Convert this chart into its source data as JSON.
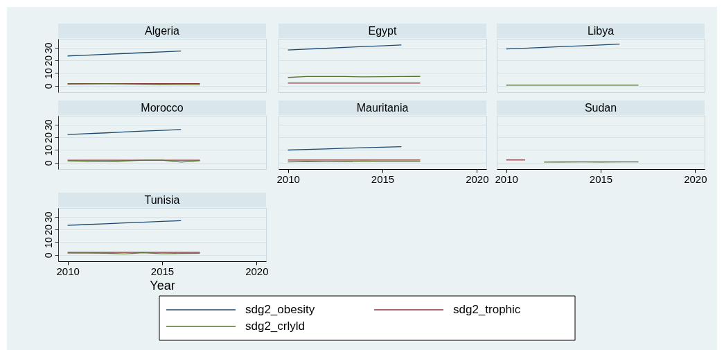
{
  "chart_data": [
    {
      "type": "line",
      "title": "Algeria",
      "x": [
        2010,
        2011,
        2012,
        2013,
        2014,
        2015,
        2016,
        2017
      ],
      "xlim": [
        2009.5,
        2020.5
      ],
      "xticks": [
        2010,
        2015,
        2020
      ],
      "ylim": [
        -5,
        37
      ],
      "yticks": [
        0,
        10,
        20,
        30
      ],
      "grid": "y",
      "tick_labels": "y",
      "legend": false,
      "series": [
        {
          "color": "#1a476f",
          "values": [
            23.5,
            24.1,
            24.8,
            25.4,
            26.1,
            26.7,
            27.4,
            null
          ]
        },
        {
          "color": "#90353b",
          "values": [
            1.8,
            1.8,
            1.8,
            1.8,
            1.8,
            1.8,
            1.8,
            1.8
          ]
        },
        {
          "color": "#55752f",
          "values": [
            1.4,
            1.5,
            1.6,
            1.5,
            1.2,
            1.0,
            0.9,
            0.8
          ]
        }
      ]
    },
    {
      "type": "line",
      "title": "Egypt",
      "x": [
        2010,
        2011,
        2012,
        2013,
        2014,
        2015,
        2016,
        2017
      ],
      "xlim": [
        2009.5,
        2020.5
      ],
      "xticks": [
        2010,
        2015,
        2020
      ],
      "ylim": [
        -5,
        37
      ],
      "yticks": [
        0,
        10,
        20,
        30
      ],
      "grid": "y",
      "tick_labels": false,
      "legend": false,
      "series": [
        {
          "color": "#1a476f",
          "values": [
            28.2,
            28.9,
            29.5,
            30.2,
            30.9,
            31.5,
            32.2,
            null
          ]
        },
        {
          "color": "#90353b",
          "values": [
            2.2,
            2.2,
            2.2,
            2.2,
            2.2,
            2.2,
            2.2,
            2.2
          ]
        },
        {
          "color": "#55752f",
          "values": [
            6.6,
            7.3,
            7.3,
            7.3,
            7.1,
            7.2,
            7.3,
            7.4
          ]
        }
      ]
    },
    {
      "type": "line",
      "title": "Libya",
      "x": [
        2010,
        2011,
        2012,
        2013,
        2014,
        2015,
        2016,
        2017
      ],
      "xlim": [
        2009.5,
        2020.5
      ],
      "xticks": [
        2010,
        2015,
        2020
      ],
      "ylim": [
        -5,
        37
      ],
      "yticks": [
        0,
        10,
        20,
        30
      ],
      "grid": "y",
      "tick_labels": false,
      "legend": false,
      "series": [
        {
          "color": "#1a476f",
          "values": [
            29.0,
            29.6,
            30.3,
            30.9,
            31.5,
            32.2,
            32.8,
            null
          ]
        },
        {
          "color": "#55752f",
          "values": [
            0.5,
            0.5,
            0.5,
            0.5,
            0.5,
            0.5,
            0.5,
            0.5
          ]
        }
      ]
    },
    {
      "type": "line",
      "title": "Morocco",
      "x": [
        2010,
        2011,
        2012,
        2013,
        2014,
        2015,
        2016,
        2017
      ],
      "xlim": [
        2009.5,
        2020.5
      ],
      "xticks": [
        2010,
        2015,
        2020
      ],
      "ylim": [
        -5,
        37
      ],
      "yticks": [
        0,
        10,
        20,
        30
      ],
      "grid": "y",
      "tick_labels": "y",
      "legend": false,
      "series": [
        {
          "color": "#1a476f",
          "values": [
            22.2,
            22.9,
            23.5,
            24.2,
            24.9,
            25.5,
            26.2,
            null
          ]
        },
        {
          "color": "#90353b",
          "values": [
            2.0,
            2.0,
            2.0,
            2.0,
            2.0,
            2.0,
            2.0,
            2.0
          ]
        },
        {
          "color": "#55752f",
          "values": [
            1.5,
            1.2,
            0.8,
            1.4,
            2.0,
            2.0,
            0.5,
            1.6
          ]
        }
      ]
    },
    {
      "type": "line",
      "title": "Mauritania",
      "x": [
        2010,
        2011,
        2012,
        2013,
        2014,
        2015,
        2016,
        2017
      ],
      "xlim": [
        2009.5,
        2020.5
      ],
      "xticks": [
        2010,
        2015,
        2020
      ],
      "ylim": [
        -5,
        37
      ],
      "yticks": [
        0,
        10,
        20,
        30
      ],
      "grid": "y",
      "tick_labels": "x",
      "legend": false,
      "series": [
        {
          "color": "#1a476f",
          "values": [
            10.0,
            10.5,
            10.9,
            11.4,
            11.8,
            12.3,
            12.7,
            null
          ]
        },
        {
          "color": "#90353b",
          "values": [
            2.2,
            2.2,
            2.2,
            2.2,
            2.2,
            2.2,
            2.2,
            2.2
          ]
        },
        {
          "color": "#55752f",
          "values": [
            0.7,
            1.0,
            0.8,
            1.0,
            1.3,
            1.1,
            1.1,
            1.1
          ]
        }
      ]
    },
    {
      "type": "line",
      "title": "Sudan",
      "x": [
        2010,
        2011,
        2012,
        2013,
        2014,
        2015,
        2016,
        2017
      ],
      "xlim": [
        2009.5,
        2020.5
      ],
      "xticks": [
        2010,
        2015,
        2020
      ],
      "ylim": [
        -5,
        37
      ],
      "yticks": [
        0,
        10,
        20,
        30
      ],
      "grid": "y",
      "tick_labels": "x",
      "legend": false,
      "series": [
        {
          "color": "#90353b",
          "values": [
            2.2,
            2.2,
            null,
            null,
            null,
            null,
            null,
            null
          ]
        },
        {
          "color": "#55752f",
          "values": [
            null,
            null,
            0.5,
            0.6,
            0.7,
            0.6,
            0.7,
            0.7
          ]
        }
      ]
    },
    {
      "type": "line",
      "title": "Tunisia",
      "xlabel": "Year",
      "x": [
        2010,
        2011,
        2012,
        2013,
        2014,
        2015,
        2016,
        2017
      ],
      "xlim": [
        2009.5,
        2020.5
      ],
      "xticks": [
        2010,
        2015,
        2020
      ],
      "ylim": [
        -5,
        37
      ],
      "yticks": [
        0,
        10,
        20,
        30
      ],
      "grid": "y",
      "legend": "bottom",
      "series": [
        {
          "name": "sdg2_obesity",
          "color": "#1a476f",
          "values": [
            23.3,
            23.9,
            24.5,
            25.2,
            25.8,
            26.4,
            27.0,
            null
          ]
        },
        {
          "name": "sdg2_trophic",
          "color": "#90353b",
          "values": [
            2.0,
            2.0,
            2.0,
            2.0,
            2.0,
            2.0,
            2.0,
            2.0
          ]
        },
        {
          "name": "sdg2_crlyld",
          "color": "#55752f",
          "values": [
            1.5,
            1.5,
            1.4,
            0.8,
            1.8,
            0.9,
            1.2,
            1.3
          ]
        }
      ]
    }
  ]
}
